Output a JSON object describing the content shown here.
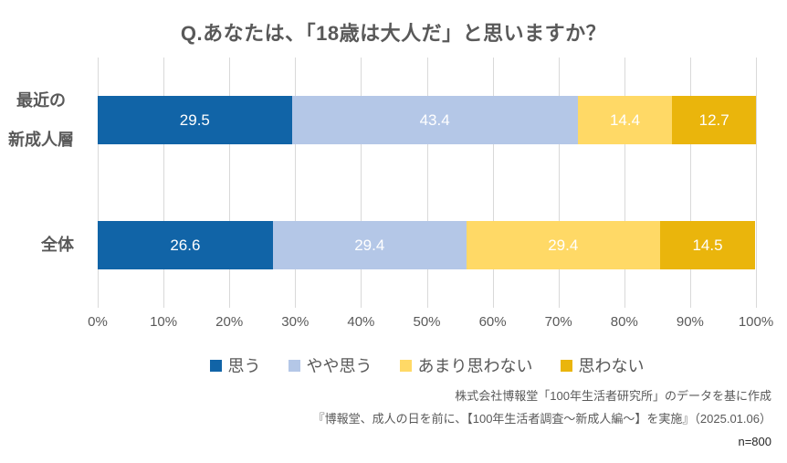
{
  "title": "Q.あなたは、「18歳は大人だ」と思いますか？",
  "chart_data": {
    "type": "bar",
    "orientation": "horizontal",
    "stacked": true,
    "title": "Q.あなたは、「18歳は大人だ」と思いますか？",
    "categories": [
      "最近の\n新成人層",
      "全体"
    ],
    "series": [
      {
        "name": "思う",
        "color": "#1164A7",
        "values": [
          29.5,
          26.6
        ]
      },
      {
        "name": "やや思う",
        "color": "#B4C7E7",
        "values": [
          43.4,
          29.4
        ]
      },
      {
        "name": "あまり思わない",
        "color": "#FFD966",
        "values": [
          14.4,
          29.4
        ]
      },
      {
        "name": "思わない",
        "color": "#EAB50C",
        "values": [
          12.7,
          14.5
        ]
      }
    ],
    "xlim": [
      0,
      100
    ],
    "x_ticks": [
      "0%",
      "10%",
      "20%",
      "30%",
      "40%",
      "50%",
      "60%",
      "70%",
      "80%",
      "90%",
      "100%"
    ],
    "grid": true,
    "gridline_color": "#D9D9D9",
    "value_label_color": "#FFFFFF",
    "legend_position": "bottom"
  },
  "footer": {
    "source_line1": "株式会社博報堂「100年生活者研究所」のデータを基に作成",
    "source_line2": "『博報堂、成人の日を前に、【100年生活者調査～新成人編～】を実施』（2025.01.06）",
    "sample_size": "n=800"
  }
}
